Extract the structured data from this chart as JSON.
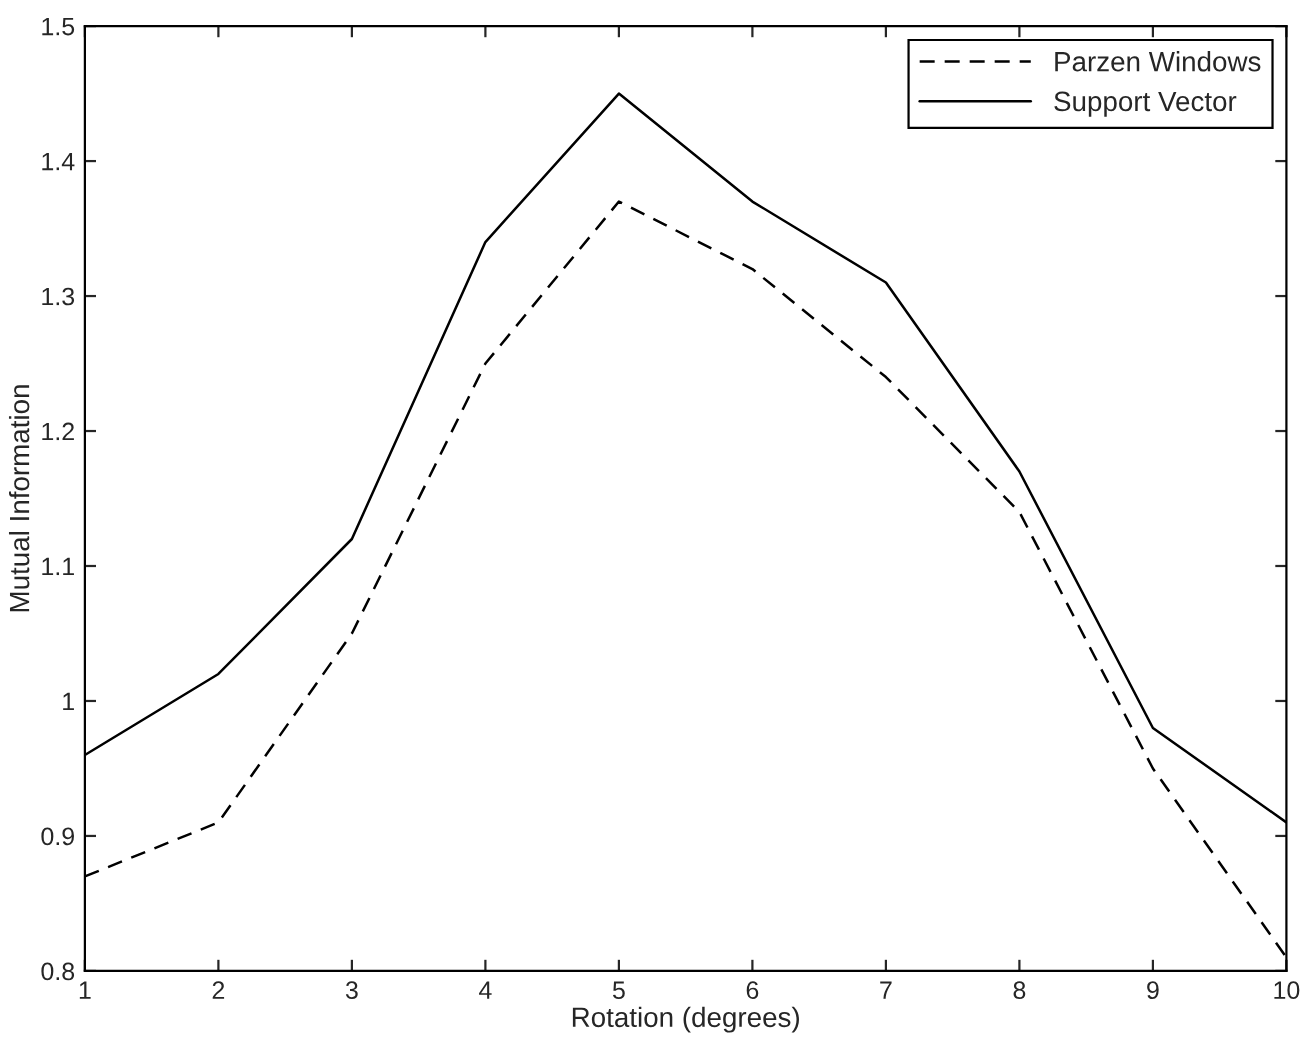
{
  "chart_data": {
    "type": "line",
    "xlabel": "Rotation (degrees)",
    "ylabel": "Mutual Information",
    "x": [
      1,
      2,
      3,
      4,
      5,
      6,
      7,
      8,
      9,
      10
    ],
    "series": [
      {
        "name": "Parzen Windows",
        "color": "#000000",
        "line_style": "dashed",
        "values": [
          0.87,
          0.91,
          1.05,
          1.25,
          1.37,
          1.32,
          1.24,
          1.14,
          0.95,
          0.81
        ]
      },
      {
        "name": "Support Vector",
        "color": "#000000",
        "line_style": "solid",
        "values": [
          0.96,
          1.02,
          1.12,
          1.34,
          1.45,
          1.37,
          1.31,
          1.17,
          0.98,
          0.91
        ]
      }
    ],
    "xlim": [
      1,
      10
    ],
    "xticks": [
      1,
      2,
      3,
      4,
      5,
      6,
      7,
      8,
      9,
      10
    ],
    "ylim": [
      0.8,
      1.5
    ],
    "yticks": [
      0.8,
      0.9,
      1,
      1.1,
      1.2,
      1.3,
      1.4,
      1.5
    ],
    "grid": false,
    "legend": "top right",
    "marker": "none"
  }
}
